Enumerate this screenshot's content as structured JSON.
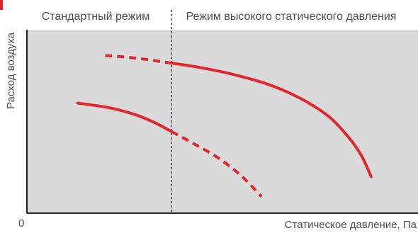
{
  "chart_data": {
    "type": "line",
    "title": "",
    "xlabel": "Статическое давление, Па",
    "ylabel": "Расход воздуха",
    "origin_label": "0",
    "regions": [
      {
        "name": "Стандартный режим",
        "x_range": [
          0,
          0.37
        ]
      },
      {
        "name": "Режим высокого статического давления",
        "x_range": [
          0.37,
          1.0
        ]
      }
    ],
    "divider_x": 0.37,
    "xlim": [
      0,
      1
    ],
    "ylim": [
      0,
      1
    ],
    "grid": false,
    "legend": "none",
    "series": [
      {
        "color": "#e3262d",
        "points": [
          [
            0.2,
            0.86,
            "dashed"
          ],
          [
            0.28,
            0.845,
            "dashed"
          ],
          [
            0.37,
            0.818,
            "dashed"
          ],
          [
            0.44,
            0.795,
            "solid"
          ],
          [
            0.53,
            0.755,
            "solid"
          ],
          [
            0.62,
            0.7,
            "solid"
          ],
          [
            0.7,
            0.625,
            "solid"
          ],
          [
            0.77,
            0.53,
            "solid"
          ],
          [
            0.82,
            0.42,
            "solid"
          ],
          [
            0.855,
            0.315,
            "solid"
          ],
          [
            0.88,
            0.2,
            "solid"
          ]
        ]
      },
      {
        "color": "#e3262d",
        "points": [
          [
            0.13,
            0.6,
            "solid"
          ],
          [
            0.21,
            0.575,
            "solid"
          ],
          [
            0.28,
            0.535,
            "solid"
          ],
          [
            0.33,
            0.49,
            "solid"
          ],
          [
            0.37,
            0.445,
            "solid"
          ],
          [
            0.43,
            0.375,
            "dashed"
          ],
          [
            0.49,
            0.3,
            "dashed"
          ],
          [
            0.55,
            0.2,
            "dashed"
          ],
          [
            0.6,
            0.09,
            "dashed"
          ]
        ]
      }
    ]
  },
  "colors": {
    "plot_background": "#d9dad9",
    "curve": "#e3262d",
    "axis": "#231f20",
    "divider": "#231f20",
    "text": "#4d4d4d"
  }
}
